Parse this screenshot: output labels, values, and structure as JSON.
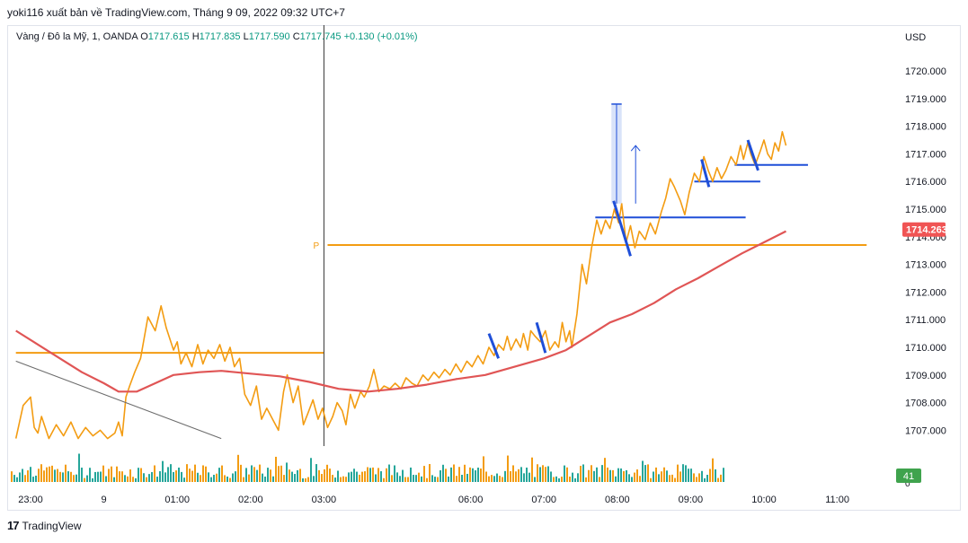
{
  "header": {
    "text": "yoki116 xuất bản về TradingView.com, Tháng 9 09, 2022 09:32 UTC+7"
  },
  "legend": {
    "symbol": "Vàng / Đô la Mỹ, 1, OANDA",
    "open_label": "O",
    "open": "1717.615",
    "high_label": "H",
    "high": "1717.835",
    "low_label": "L",
    "low": "1717.590",
    "close_label": "C",
    "close": "1717.745",
    "change": "+0.130 (+0.01%)"
  },
  "footer": {
    "brand": "TradingView"
  },
  "colors": {
    "price_line": "#f39c12",
    "ma_line": "#e05555",
    "drawing_blue": "#1f4fd8",
    "up_volume": "#26a69a",
    "down_volume": "#f39c12",
    "price_badge": "#f05454",
    "volume_badge": "#3fa34d"
  },
  "chart_data": {
    "type": "line",
    "currency": "USD",
    "y_ticks": [
      "1707.000",
      "1708.000",
      "1709.000",
      "1710.000",
      "1711.000",
      "1712.000",
      "1713.000",
      "1714.000",
      "1715.000",
      "1716.000",
      "1717.000",
      "1718.000",
      "1719.000",
      "1720.000"
    ],
    "ylim": [
      1706.5,
      1721.2
    ],
    "x_ticks": [
      {
        "label": "23:00",
        "hour": 0
      },
      {
        "label": "9",
        "hour": 1
      },
      {
        "label": "01:00",
        "hour": 2
      },
      {
        "label": "02:00",
        "hour": 3
      },
      {
        "label": "03:00",
        "hour": 4
      },
      {
        "label": "06:00",
        "hour": 6
      },
      {
        "label": "07:00",
        "hour": 7
      },
      {
        "label": "08:00",
        "hour": 8
      },
      {
        "label": "09:00",
        "hour": 9
      },
      {
        "label": "10:00",
        "hour": 10
      },
      {
        "label": "11:00",
        "hour": 11
      }
    ],
    "current_price_label": "1714.263",
    "volume_label": "41",
    "volume_axis_label": "0",
    "pivot_label": "P",
    "series": [
      {
        "id": "price",
        "points": [
          [
            -0.2,
            1706.7
          ],
          [
            -0.1,
            1707.9
          ],
          [
            0.0,
            1708.2
          ],
          [
            0.05,
            1707.1
          ],
          [
            0.1,
            1706.9
          ],
          [
            0.15,
            1707.5
          ],
          [
            0.25,
            1706.7
          ],
          [
            0.35,
            1707.2
          ],
          [
            0.45,
            1706.8
          ],
          [
            0.55,
            1707.3
          ],
          [
            0.65,
            1706.7
          ],
          [
            0.75,
            1707.1
          ],
          [
            0.85,
            1706.8
          ],
          [
            0.95,
            1707.0
          ],
          [
            1.05,
            1706.7
          ],
          [
            1.15,
            1706.9
          ],
          [
            1.2,
            1707.3
          ],
          [
            1.25,
            1706.8
          ],
          [
            1.3,
            1708.2
          ],
          [
            1.35,
            1708.6
          ],
          [
            1.42,
            1709.1
          ],
          [
            1.5,
            1709.6
          ],
          [
            1.6,
            1711.1
          ],
          [
            1.7,
            1710.6
          ],
          [
            1.78,
            1711.5
          ],
          [
            1.85,
            1710.7
          ],
          [
            1.95,
            1709.9
          ],
          [
            2.0,
            1710.2
          ],
          [
            2.05,
            1709.4
          ],
          [
            2.12,
            1709.8
          ],
          [
            2.2,
            1709.3
          ],
          [
            2.28,
            1710.1
          ],
          [
            2.35,
            1709.4
          ],
          [
            2.42,
            1709.9
          ],
          [
            2.5,
            1709.6
          ],
          [
            2.58,
            1710.1
          ],
          [
            2.65,
            1709.5
          ],
          [
            2.72,
            1710.0
          ],
          [
            2.78,
            1709.3
          ],
          [
            2.85,
            1709.6
          ],
          [
            2.92,
            1708.3
          ],
          [
            3.0,
            1707.9
          ],
          [
            3.08,
            1708.6
          ],
          [
            3.15,
            1707.4
          ],
          [
            3.22,
            1707.8
          ],
          [
            3.3,
            1707.4
          ],
          [
            3.38,
            1707.0
          ],
          [
            3.45,
            1708.4
          ],
          [
            3.5,
            1709.0
          ],
          [
            3.58,
            1708.0
          ],
          [
            3.65,
            1708.6
          ],
          [
            3.72,
            1707.2
          ],
          [
            3.78,
            1707.6
          ],
          [
            3.85,
            1708.1
          ],
          [
            3.92,
            1707.4
          ],
          [
            3.98,
            1707.8
          ],
          [
            4.05,
            1707.1
          ],
          [
            4.12,
            1707.5
          ],
          [
            4.18,
            1708.0
          ],
          [
            4.25,
            1707.7
          ],
          [
            4.3,
            1707.2
          ],
          [
            4.36,
            1708.3
          ],
          [
            4.42,
            1707.8
          ],
          [
            4.5,
            1708.4
          ],
          [
            4.55,
            1708.2
          ],
          [
            4.62,
            1708.6
          ],
          [
            4.68,
            1709.2
          ],
          [
            4.75,
            1708.4
          ],
          [
            4.82,
            1708.6
          ],
          [
            4.9,
            1708.5
          ],
          [
            4.97,
            1708.7
          ],
          [
            5.05,
            1708.5
          ],
          [
            5.12,
            1708.9
          ],
          [
            5.2,
            1708.7
          ],
          [
            5.27,
            1708.6
          ],
          [
            5.35,
            1709.0
          ],
          [
            5.42,
            1708.8
          ],
          [
            5.5,
            1709.1
          ],
          [
            5.57,
            1708.9
          ],
          [
            5.65,
            1709.2
          ],
          [
            5.72,
            1709.0
          ],
          [
            5.8,
            1709.4
          ],
          [
            5.87,
            1709.1
          ],
          [
            5.95,
            1709.5
          ],
          [
            6.02,
            1709.3
          ],
          [
            6.1,
            1709.7
          ],
          [
            6.17,
            1709.4
          ],
          [
            6.25,
            1710.0
          ],
          [
            6.32,
            1709.7
          ],
          [
            6.38,
            1710.1
          ],
          [
            6.45,
            1709.9
          ],
          [
            6.5,
            1710.4
          ],
          [
            6.55,
            1709.9
          ],
          [
            6.62,
            1710.3
          ],
          [
            6.68,
            1710.0
          ],
          [
            6.72,
            1710.5
          ],
          [
            6.78,
            1709.9
          ],
          [
            6.82,
            1710.6
          ],
          [
            6.88,
            1710.4
          ],
          [
            6.95,
            1710.2
          ],
          [
            7.02,
            1710.6
          ],
          [
            7.08,
            1709.9
          ],
          [
            7.15,
            1710.2
          ],
          [
            7.2,
            1710.0
          ],
          [
            7.25,
            1710.9
          ],
          [
            7.3,
            1710.2
          ],
          [
            7.35,
            1710.6
          ],
          [
            7.38,
            1710.0
          ],
          [
            7.45,
            1711.2
          ],
          [
            7.52,
            1713.0
          ],
          [
            7.58,
            1712.3
          ],
          [
            7.65,
            1713.6
          ],
          [
            7.72,
            1714.6
          ],
          [
            7.78,
            1714.1
          ],
          [
            7.84,
            1714.6
          ],
          [
            7.9,
            1714.3
          ],
          [
            7.96,
            1715.0
          ],
          [
            8.02,
            1714.5
          ],
          [
            8.06,
            1715.2
          ],
          [
            8.12,
            1713.8
          ],
          [
            8.18,
            1714.4
          ],
          [
            8.24,
            1713.6
          ],
          [
            8.3,
            1714.2
          ],
          [
            8.38,
            1713.9
          ],
          [
            8.45,
            1714.5
          ],
          [
            8.52,
            1714.1
          ],
          [
            8.6,
            1714.9
          ],
          [
            8.66,
            1715.4
          ],
          [
            8.72,
            1716.1
          ],
          [
            8.78,
            1715.8
          ],
          [
            8.86,
            1715.3
          ],
          [
            8.92,
            1714.8
          ],
          [
            8.98,
            1715.6
          ],
          [
            9.05,
            1716.3
          ],
          [
            9.12,
            1716.0
          ],
          [
            9.18,
            1716.9
          ],
          [
            9.24,
            1716.4
          ],
          [
            9.3,
            1716.0
          ],
          [
            9.36,
            1716.5
          ],
          [
            9.42,
            1716.1
          ],
          [
            9.48,
            1716.4
          ],
          [
            9.55,
            1716.9
          ],
          [
            9.62,
            1716.6
          ],
          [
            9.68,
            1717.3
          ],
          [
            9.72,
            1716.8
          ],
          [
            9.78,
            1717.4
          ],
          [
            9.82,
            1717.0
          ],
          [
            9.88,
            1716.6
          ],
          [
            9.95,
            1717.1
          ],
          [
            10.0,
            1717.5
          ],
          [
            10.05,
            1717.0
          ],
          [
            10.1,
            1716.8
          ],
          [
            10.15,
            1717.4
          ],
          [
            10.2,
            1717.1
          ],
          [
            10.25,
            1717.8
          ],
          [
            10.3,
            1717.3
          ]
        ]
      },
      {
        "id": "moving-average",
        "points": [
          [
            -0.2,
            1710.6
          ],
          [
            0.1,
            1710.1
          ],
          [
            0.4,
            1709.6
          ],
          [
            0.7,
            1709.1
          ],
          [
            1.0,
            1708.7
          ],
          [
            1.2,
            1708.4
          ],
          [
            1.45,
            1708.4
          ],
          [
            1.7,
            1708.7
          ],
          [
            1.95,
            1709.0
          ],
          [
            2.3,
            1709.1
          ],
          [
            2.6,
            1709.15
          ],
          [
            3.0,
            1709.05
          ],
          [
            3.4,
            1708.95
          ],
          [
            3.8,
            1708.75
          ],
          [
            4.2,
            1708.5
          ],
          [
            4.6,
            1708.4
          ],
          [
            5.0,
            1708.5
          ],
          [
            5.4,
            1708.65
          ],
          [
            5.8,
            1708.85
          ],
          [
            6.2,
            1709.0
          ],
          [
            6.6,
            1709.3
          ],
          [
            7.0,
            1709.6
          ],
          [
            7.3,
            1709.9
          ],
          [
            7.6,
            1710.4
          ],
          [
            7.9,
            1710.9
          ],
          [
            8.2,
            1711.2
          ],
          [
            8.5,
            1711.6
          ],
          [
            8.8,
            1712.1
          ],
          [
            9.1,
            1712.5
          ],
          [
            9.4,
            1712.95
          ],
          [
            9.7,
            1713.4
          ],
          [
            10.0,
            1713.8
          ],
          [
            10.3,
            1714.2
          ]
        ]
      }
    ],
    "horizontal_levels": [
      {
        "id": "level-overnight",
        "price": 1709.8,
        "from": -0.2,
        "to": 4.0,
        "color": "orange"
      },
      {
        "id": "pivot-level",
        "price": 1713.7,
        "from": 4.05,
        "to": 11.4,
        "color": "orange"
      },
      {
        "id": "level-1714-7",
        "price": 1714.7,
        "from": 7.7,
        "to": 9.75,
        "color": "blue"
      },
      {
        "id": "level-1716",
        "price": 1716.0,
        "from": 9.05,
        "to": 9.95,
        "color": "blue"
      },
      {
        "id": "level-1716-6",
        "price": 1716.6,
        "from": 9.6,
        "to": 10.6,
        "color": "blue"
      }
    ],
    "slanted_marks": [
      {
        "x1": 6.25,
        "y1": 1710.5,
        "x2": 6.38,
        "y2": 1709.6
      },
      {
        "x1": 6.9,
        "y1": 1710.9,
        "x2": 7.02,
        "y2": 1709.8
      },
      {
        "x1": 7.95,
        "y1": 1715.3,
        "x2": 8.18,
        "y2": 1713.3
      },
      {
        "x1": 9.15,
        "y1": 1716.8,
        "x2": 9.25,
        "y2": 1715.8
      },
      {
        "x1": 9.78,
        "y1": 1717.5,
        "x2": 9.92,
        "y2": 1716.4
      }
    ],
    "measure_box": {
      "x1": 7.92,
      "x2": 8.06,
      "y1": 1715.2,
      "y2": 1718.8
    },
    "arrow": {
      "x": 8.25,
      "y_from": 1715.2,
      "y_to": 1717.3
    },
    "trend_line": {
      "x1": -0.2,
      "y1": 1709.5,
      "x2": 2.6,
      "y2": 1706.7
    },
    "cursor_hour": 4.0
  }
}
